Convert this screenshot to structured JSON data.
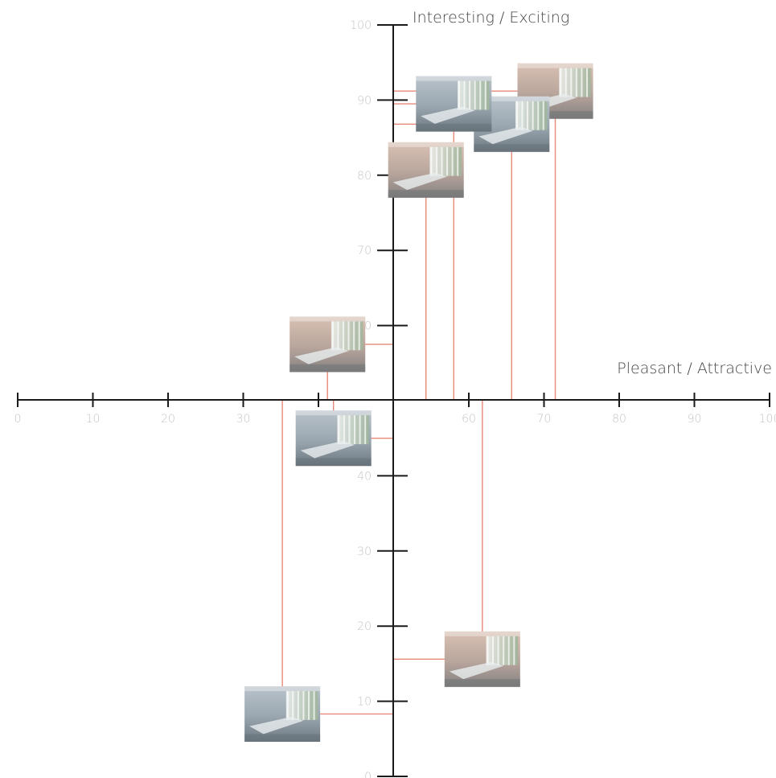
{
  "chart_data": {
    "type": "scatter",
    "xlabel": "Pleasant / Attractive",
    "ylabel": "Interesting / Exciting",
    "xlim": [
      0,
      100
    ],
    "ylim": [
      0,
      100
    ],
    "x_ticks": [
      "0",
      "10",
      "20",
      "30",
      "40",
      "60",
      "70",
      "80",
      "90",
      "100"
    ],
    "y_ticks": [
      "0",
      "10",
      "20",
      "30",
      "40",
      "60",
      "70",
      "80",
      "90",
      "100"
    ],
    "grid": false,
    "marker": "room-rendering-thumbnail",
    "points": [
      {
        "x": 71.5,
        "y": 91.2,
        "image": "office-honeycomb-screen",
        "tint": "warm"
      },
      {
        "x": 65.7,
        "y": 86.8,
        "image": "office-organic-screen",
        "tint": "cool"
      },
      {
        "x": 54.3,
        "y": 80.7,
        "image": "office-wavy-fins",
        "tint": "warm"
      },
      {
        "x": 58.0,
        "y": 89.5,
        "image": "office-organic-pattern-glazing",
        "tint": "cool"
      },
      {
        "x": 41.2,
        "y": 57.5,
        "image": "office-vertical-slats",
        "tint": "warm"
      },
      {
        "x": 42.0,
        "y": 45.0,
        "image": "office-vertical-louvres",
        "tint": "cool"
      },
      {
        "x": 61.8,
        "y": 15.6,
        "image": "office-clear-glazing",
        "tint": "warm"
      },
      {
        "x": 35.2,
        "y": 8.3,
        "image": "office-ribbon-window",
        "tint": "cool"
      }
    ]
  }
}
